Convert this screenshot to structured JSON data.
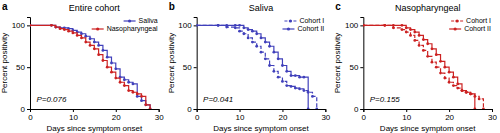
{
  "chart_data": [
    {
      "type": "step",
      "panel_label": "a",
      "title": "Entire cohort",
      "x_label": "Days since symptom onset",
      "y_label": "Percent positivity",
      "annotations": [
        "P=0.076"
      ],
      "xlim": [
        0,
        30
      ],
      "ylim": [
        0,
        110
      ],
      "xticks": [
        0,
        10,
        20,
        30
      ],
      "yticks": [
        0,
        50,
        100
      ],
      "grid": false,
      "legend": "upper right",
      "marker": "point",
      "series": [
        {
          "name": "Saliva",
          "color": "#4040bb",
          "line_style": "solid",
          "x": [
            0,
            5,
            6,
            7,
            8,
            9,
            10,
            11,
            12,
            13,
            14,
            15,
            16,
            17,
            18,
            19,
            20,
            21,
            22,
            23,
            24,
            25,
            26,
            27,
            28
          ],
          "values": [
            100,
            100,
            98,
            97,
            97,
            96,
            94,
            92,
            90,
            87,
            84,
            80,
            76,
            70,
            62,
            55,
            48,
            38,
            35,
            32,
            30,
            15,
            10,
            5,
            0
          ]
        },
        {
          "name": "Nasopharyngeal",
          "color": "#cc2222",
          "line_style": "solid",
          "x": [
            0,
            5,
            6,
            7,
            8,
            9,
            10,
            11,
            12,
            13,
            14,
            15,
            16,
            17,
            18,
            19,
            20,
            21,
            22,
            23,
            24,
            25,
            26,
            27,
            28
          ],
          "values": [
            100,
            100,
            98,
            96,
            95,
            93,
            91,
            88,
            85,
            80,
            76,
            72,
            65,
            58,
            50,
            44,
            37,
            32,
            28,
            22,
            20,
            18,
            15,
            5,
            0
          ]
        }
      ]
    },
    {
      "type": "step",
      "panel_label": "b",
      "title": "Saliva",
      "x_label": "Days since symptom onset",
      "y_label": "Percent positivity",
      "annotations": [
        "P=0.041"
      ],
      "xlim": [
        0,
        30
      ],
      "ylim": [
        0,
        110
      ],
      "xticks": [
        0,
        10,
        20,
        30
      ],
      "yticks": [
        0,
        50,
        100
      ],
      "grid": false,
      "legend": "upper right",
      "marker": "point",
      "series": [
        {
          "name": "Cohort I",
          "color": "#4040bb",
          "line_style": "dashed",
          "x": [
            0,
            5,
            7,
            9,
            10,
            11,
            12,
            13,
            14,
            15,
            16,
            17,
            18,
            19,
            20,
            21,
            22,
            23,
            24,
            25,
            26,
            27,
            28
          ],
          "values": [
            100,
            100,
            98,
            97,
            93,
            90,
            85,
            80,
            75,
            68,
            60,
            52,
            45,
            38,
            33,
            28,
            27,
            25,
            24,
            22,
            20,
            15,
            0
          ]
        },
        {
          "name": "Cohort II",
          "color": "#4040bb",
          "line_style": "solid",
          "x": [
            0,
            5,
            7,
            9,
            10,
            11,
            12,
            13,
            14,
            15,
            16,
            17,
            18,
            19,
            20,
            21,
            22,
            23,
            24,
            25,
            26
          ],
          "values": [
            100,
            100,
            100,
            100,
            100,
            97,
            95,
            93,
            90,
            85,
            80,
            75,
            68,
            60,
            52,
            45,
            40,
            40,
            38,
            38,
            0
          ]
        }
      ]
    },
    {
      "type": "step",
      "panel_label": "c",
      "title": "Nasopharyngeal",
      "x_label": "Days since symptom onset",
      "y_label": "Percent positivity",
      "annotations": [
        "P=0.155"
      ],
      "xlim": [
        0,
        30
      ],
      "ylim": [
        0,
        110
      ],
      "xticks": [
        0,
        10,
        20,
        30
      ],
      "yticks": [
        0,
        50,
        100
      ],
      "grid": false,
      "legend": "upper right",
      "marker": "point",
      "series": [
        {
          "name": "Cohort I",
          "color": "#cc2222",
          "line_style": "dashed",
          "x": [
            0,
            5,
            7,
            9,
            10,
            11,
            12,
            13,
            14,
            15,
            16,
            17,
            18,
            19,
            20,
            21,
            22,
            23,
            24,
            25,
            26,
            27,
            28
          ],
          "values": [
            100,
            100,
            97,
            95,
            92,
            88,
            82,
            76,
            70,
            63,
            56,
            50,
            43,
            37,
            32,
            28,
            25,
            22,
            20,
            18,
            15,
            12,
            0
          ]
        },
        {
          "name": "Cohort II",
          "color": "#cc2222",
          "line_style": "solid",
          "x": [
            0,
            5,
            7,
            9,
            10,
            11,
            12,
            13,
            14,
            15,
            16,
            17,
            18,
            19,
            20,
            21,
            22,
            23,
            24,
            25,
            26
          ],
          "values": [
            100,
            100,
            100,
            100,
            97,
            95,
            92,
            88,
            83,
            78,
            72,
            65,
            57,
            50,
            44,
            38,
            30,
            22,
            20,
            18,
            0
          ]
        }
      ]
    }
  ]
}
